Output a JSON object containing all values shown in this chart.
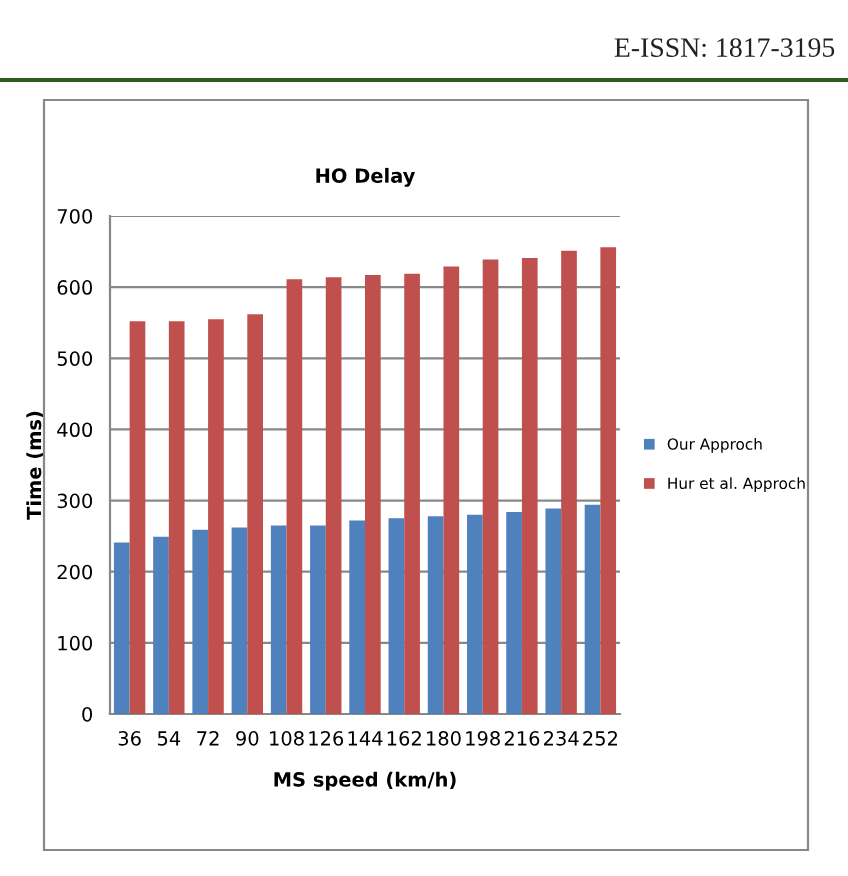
{
  "chart_data": {
    "type": "bar",
    "title": "HO Delay",
    "xlabel": "MS speed (km/h)",
    "ylabel": "Time (ms)",
    "categories": [
      "36",
      "54",
      "72",
      "90",
      "108",
      "126",
      "144",
      "162",
      "180",
      "198",
      "216",
      "234",
      "252"
    ],
    "series": [
      {
        "name": "Our Approch",
        "color": "#4f81bd",
        "values": [
          241,
          249,
          259,
          262,
          265,
          265,
          272,
          275,
          278,
          280,
          284,
          289,
          294
        ]
      },
      {
        "name": "Hur et al. Approch",
        "color": "#c0504d",
        "values": [
          552,
          552,
          555,
          562,
          611,
          614,
          617,
          619,
          629,
          639,
          641,
          651,
          656
        ]
      }
    ],
    "ylim": [
      0,
      700
    ],
    "yticks": [
      0,
      100,
      200,
      300,
      400,
      500,
      600,
      700
    ],
    "grid": "y",
    "legend": "right",
    "annotations": [
      "E-ISSN: 1817-3195"
    ]
  }
}
